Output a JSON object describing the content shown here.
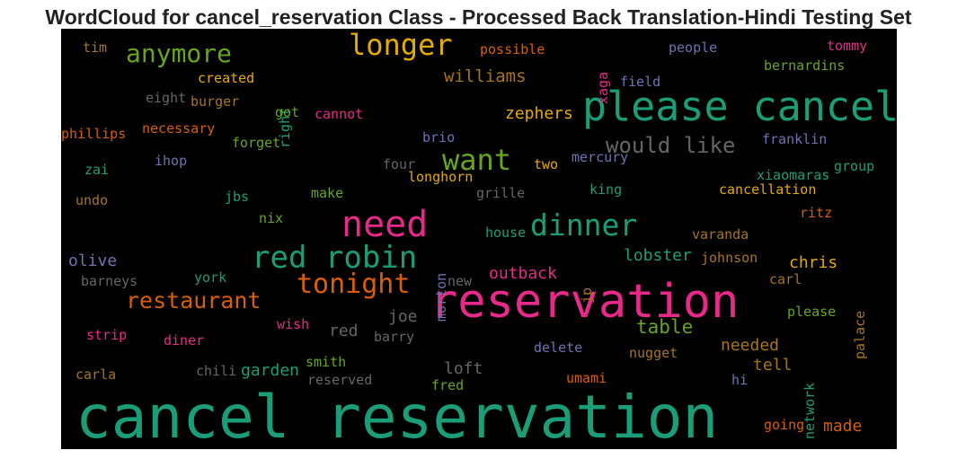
{
  "title": "WordCloud for cancel_reservation Class - Processed Back Translation-Hindi Testing Set",
  "palette": {
    "teal": "#1b9e77",
    "pink": "#e7298a",
    "orange": "#d95f02",
    "purple": "#7570b3",
    "green": "#66a61e",
    "gold": "#e6ab02",
    "brown": "#a6761d",
    "gray": "#666666"
  },
  "words": [
    {
      "text": "cancel reservation",
      "weight": 100,
      "color": "#1b9e77"
    },
    {
      "text": "reservation",
      "weight": 90,
      "color": "#e7298a"
    },
    {
      "text": "please cancel",
      "weight": 80,
      "color": "#1b9e77"
    },
    {
      "text": "need",
      "weight": 70,
      "color": "#e7298a"
    },
    {
      "text": "red robin",
      "weight": 62,
      "color": "#1b9e77"
    },
    {
      "text": "dinner",
      "weight": 60,
      "color": "#1b9e77"
    },
    {
      "text": "want",
      "weight": 58,
      "color": "#66a61e"
    },
    {
      "text": "longer",
      "weight": 57,
      "color": "#e6ab02"
    },
    {
      "text": "tonight",
      "weight": 55,
      "color": "#d95f02"
    },
    {
      "text": "anymore",
      "weight": 52,
      "color": "#66a61e"
    },
    {
      "text": "restaurant",
      "weight": 48,
      "color": "#d95f02"
    },
    {
      "text": "would like",
      "weight": 46,
      "color": "#666666"
    },
    {
      "text": "table",
      "weight": 40,
      "color": "#66a61e"
    },
    {
      "text": "williams",
      "weight": 36,
      "color": "#a6761d"
    },
    {
      "text": "zephers",
      "weight": 34,
      "color": "#e6ab02"
    },
    {
      "text": "outback",
      "weight": 34,
      "color": "#e7298a"
    },
    {
      "text": "olive",
      "weight": 34,
      "color": "#7570b3"
    },
    {
      "text": "lobster",
      "weight": 34,
      "color": "#1b9e77"
    },
    {
      "text": "chris",
      "weight": 34,
      "color": "#e6ab02"
    },
    {
      "text": "joe",
      "weight": 34,
      "color": "#666666"
    },
    {
      "text": "red",
      "weight": 34,
      "color": "#666666"
    },
    {
      "text": "needed",
      "weight": 34,
      "color": "#a6761d"
    },
    {
      "text": "garden",
      "weight": 34,
      "color": "#1b9e77"
    },
    {
      "text": "loft",
      "weight": 34,
      "color": "#666666"
    },
    {
      "text": "tell",
      "weight": 34,
      "color": "#a6761d"
    },
    {
      "text": "made",
      "weight": 34,
      "color": "#d95f02"
    },
    {
      "text": "morton",
      "weight": 30,
      "color": "#7570b3"
    },
    {
      "text": "jp",
      "weight": 28,
      "color": "#a6761d"
    },
    {
      "text": "network",
      "weight": 28,
      "color": "#1b9e77"
    },
    {
      "text": "palace",
      "weight": 28,
      "color": "#a6761d"
    },
    {
      "text": "right",
      "weight": 28,
      "color": "#1b9e77"
    },
    {
      "text": "xaga",
      "weight": 28,
      "color": "#e7298a"
    },
    {
      "text": "tim",
      "weight": 28,
      "color": "#a6761d"
    },
    {
      "text": "possible",
      "weight": 28,
      "color": "#d95f02"
    },
    {
      "text": "people",
      "weight": 28,
      "color": "#7570b3"
    },
    {
      "text": "tommy",
      "weight": 28,
      "color": "#e7298a"
    },
    {
      "text": "bernardins",
      "weight": 28,
      "color": "#66a61e"
    },
    {
      "text": "created",
      "weight": 28,
      "color": "#e6ab02"
    },
    {
      "text": "field",
      "weight": 28,
      "color": "#7570b3"
    },
    {
      "text": "eight",
      "weight": 28,
      "color": "#666666"
    },
    {
      "text": "burger",
      "weight": 28,
      "color": "#a6761d"
    },
    {
      "text": "got",
      "weight": 28,
      "color": "#66a61e"
    },
    {
      "text": "cannot",
      "weight": 28,
      "color": "#e7298a"
    },
    {
      "text": "phillips",
      "weight": 28,
      "color": "#d95f02"
    },
    {
      "text": "necessary",
      "weight": 28,
      "color": "#d95f02"
    },
    {
      "text": "brio",
      "weight": 28,
      "color": "#7570b3"
    },
    {
      "text": "franklin",
      "weight": 28,
      "color": "#7570b3"
    },
    {
      "text": "forget",
      "weight": 28,
      "color": "#66a61e"
    },
    {
      "text": "zai",
      "weight": 28,
      "color": "#1b9e77"
    },
    {
      "text": "ihop",
      "weight": 28,
      "color": "#7570b3"
    },
    {
      "text": "four",
      "weight": 28,
      "color": "#666666"
    },
    {
      "text": "two",
      "weight": 28,
      "color": "#e6ab02"
    },
    {
      "text": "mercury",
      "weight": 28,
      "color": "#7570b3"
    },
    {
      "text": "group",
      "weight": 28,
      "color": "#1b9e77"
    },
    {
      "text": "xiaomaras",
      "weight": 28,
      "color": "#1b9e77"
    },
    {
      "text": "longhorn",
      "weight": 28,
      "color": "#e6ab02"
    },
    {
      "text": "cancellation",
      "weight": 28,
      "color": "#e6ab02"
    },
    {
      "text": "undo",
      "weight": 28,
      "color": "#a6761d"
    },
    {
      "text": "jbs",
      "weight": 28,
      "color": "#1b9e77"
    },
    {
      "text": "make",
      "weight": 28,
      "color": "#66a61e"
    },
    {
      "text": "grille",
      "weight": 28,
      "color": "#666666"
    },
    {
      "text": "king",
      "weight": 28,
      "color": "#1b9e77"
    },
    {
      "text": "nix",
      "weight": 28,
      "color": "#66a61e"
    },
    {
      "text": "ritz",
      "weight": 28,
      "color": "#d95f02"
    },
    {
      "text": "house",
      "weight": 28,
      "color": "#1b9e77"
    },
    {
      "text": "varanda",
      "weight": 28,
      "color": "#a6761d"
    },
    {
      "text": "johnson",
      "weight": 28,
      "color": "#a6761d"
    },
    {
      "text": "york",
      "weight": 28,
      "color": "#1b9e77"
    },
    {
      "text": "barneys",
      "weight": 28,
      "color": "#666666"
    },
    {
      "text": "new",
      "weight": 28,
      "color": "#666666"
    },
    {
      "text": "carl",
      "weight": 28,
      "color": "#a6761d"
    },
    {
      "text": "please",
      "weight": 28,
      "color": "#66a61e"
    },
    {
      "text": "wish",
      "weight": 28,
      "color": "#e7298a"
    },
    {
      "text": "strip",
      "weight": 28,
      "color": "#e7298a"
    },
    {
      "text": "diner",
      "weight": 28,
      "color": "#e7298a"
    },
    {
      "text": "barry",
      "weight": 28,
      "color": "#666666"
    },
    {
      "text": "delete",
      "weight": 28,
      "color": "#7570b3"
    },
    {
      "text": "nugget",
      "weight": 28,
      "color": "#a6761d"
    },
    {
      "text": "carla",
      "weight": 28,
      "color": "#a6761d"
    },
    {
      "text": "chili",
      "weight": 28,
      "color": "#666666"
    },
    {
      "text": "smith",
      "weight": 28,
      "color": "#66a61e"
    },
    {
      "text": "reserved",
      "weight": 28,
      "color": "#666666"
    },
    {
      "text": "fred",
      "weight": 28,
      "color": "#66a61e"
    },
    {
      "text": "umami",
      "weight": 28,
      "color": "#d95f02"
    },
    {
      "text": "hi",
      "weight": 28,
      "color": "#7570b3"
    },
    {
      "text": "going",
      "weight": 28,
      "color": "#d95f02"
    }
  ]
}
